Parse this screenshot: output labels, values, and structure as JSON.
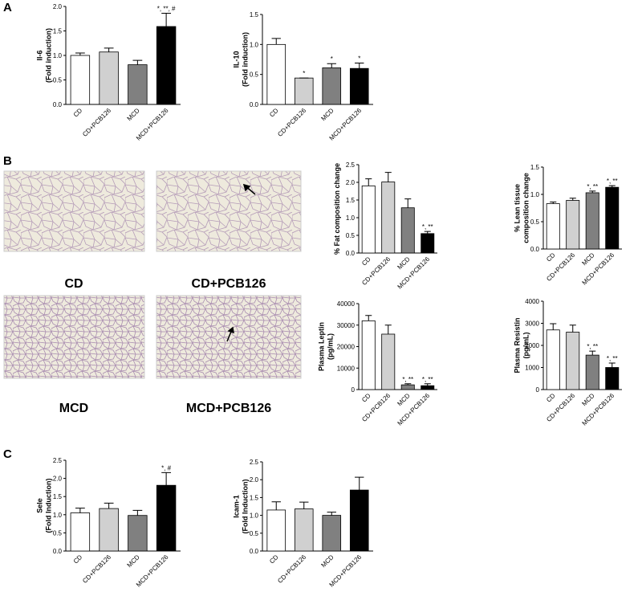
{
  "panels": [
    "A",
    "B",
    "C"
  ],
  "images": [
    {
      "label": "CD"
    },
    {
      "label": "CD+PCB126"
    },
    {
      "label": "MCD"
    },
    {
      "label": "MCD+PCB126"
    }
  ],
  "chart_data": [
    {
      "type": "bar",
      "ylabel": [
        "Il-6",
        "(Fold induction)"
      ],
      "categories": [
        "CD",
        "CD+PCB126",
        "MCD",
        "MCD+PCB126"
      ],
      "values": [
        1.0,
        1.07,
        0.81,
        1.59
      ],
      "errors": [
        0.05,
        0.08,
        0.09,
        0.27
      ],
      "annotations": [
        null,
        null,
        null,
        "*, **, #"
      ],
      "colors": [
        "#ffffff",
        "#d0d0d0",
        "#808080",
        "#000000"
      ],
      "ylim": [
        0,
        2
      ],
      "yticks": [
        {
          "value": 0,
          "label": "0.0"
        },
        0.5,
        {
          "value": 1,
          "label": "1.0"
        },
        1.5,
        {
          "value": 2,
          "label": "2.0"
        }
      ]
    },
    {
      "type": "bar",
      "ylabel": [
        "IL-10",
        "(Fold induction)"
      ],
      "categories": [
        "CD",
        "CD+PCB126",
        "MCD",
        "MCD+PCB126"
      ],
      "values": [
        1.0,
        0.44,
        0.61,
        0.6
      ],
      "errors": [
        0.1,
        0,
        0.07,
        0.09
      ],
      "annotations": [
        null,
        "*",
        "*",
        "*"
      ],
      "colors": [
        "#ffffff",
        "#d0d0d0",
        "#808080",
        "#000000"
      ],
      "ylim": [
        0,
        1.5
      ],
      "yticks": [
        {
          "value": 0,
          "label": "0.0"
        },
        0.5,
        {
          "value": 1,
          "label": "1.0"
        },
        1.5
      ]
    },
    {
      "type": "bar",
      "ylabel": [
        "% Fat composition change"
      ],
      "categories": [
        "CD",
        "CD+PCB126",
        "MCD",
        "MCD+PCB126"
      ],
      "values": [
        1.9,
        2.01,
        1.28,
        0.55
      ],
      "errors": [
        0.2,
        0.27,
        0.25,
        0.06
      ],
      "annotations": [
        null,
        null,
        null,
        "*, **"
      ],
      "colors": [
        "#ffffff",
        "#d0d0d0",
        "#808080",
        "#000000"
      ],
      "ylim": [
        0,
        2.5
      ],
      "yticks": [
        {
          "value": 0,
          "label": "0.0"
        },
        0.5,
        {
          "value": 1,
          "label": "1.0"
        },
        1.5,
        {
          "value": 2,
          "label": "2.0"
        },
        2.5
      ]
    },
    {
      "type": "bar",
      "ylabel": [
        "% Lean tissue",
        "composition change"
      ],
      "categories": [
        "CD",
        "CD+PCB126",
        "MCD",
        "MCD+PCB126"
      ],
      "values": [
        0.83,
        0.89,
        1.03,
        1.13
      ],
      "errors": [
        0.03,
        0.04,
        0.03,
        0.03
      ],
      "annotations": [
        null,
        null,
        "*, **",
        "*, **"
      ],
      "colors": [
        "#ffffff",
        "#d0d0d0",
        "#808080",
        "#000000"
      ],
      "ylim": [
        0,
        1.5
      ],
      "yticks": [
        {
          "value": 0,
          "label": "0.0"
        },
        0.5,
        {
          "value": 1,
          "label": "1.0"
        },
        1.5
      ]
    },
    {
      "type": "bar",
      "ylabel": [
        "Plasma Leptin",
        "(pg/mL)"
      ],
      "categories": [
        "CD",
        "CD+PCB126",
        "MCD",
        "MCD+PCB126"
      ],
      "values": [
        32000,
        25800,
        2200,
        1800
      ],
      "errors": [
        2500,
        4200,
        500,
        900
      ],
      "annotations": [
        null,
        null,
        "*, **",
        "*, **"
      ],
      "colors": [
        "#ffffff",
        "#d0d0d0",
        "#808080",
        "#000000"
      ],
      "ylim": [
        0,
        40000
      ],
      "yticks": [
        0,
        10000,
        20000,
        30000,
        40000
      ]
    },
    {
      "type": "bar",
      "ylabel": [
        "Plasma Resistin",
        "(pg/mL)"
      ],
      "categories": [
        "CD",
        "CD+PCB126",
        "MCD",
        "MCD+PCB126"
      ],
      "values": [
        2700,
        2600,
        1560,
        1000
      ],
      "errors": [
        280,
        320,
        180,
        200
      ],
      "annotations": [
        null,
        null,
        "*, **",
        "*, **"
      ],
      "colors": [
        "#ffffff",
        "#d0d0d0",
        "#808080",
        "#000000"
      ],
      "ylim": [
        0,
        4000
      ],
      "yticks": [
        0,
        1000,
        2000,
        3000,
        4000
      ]
    },
    {
      "type": "bar",
      "ylabel": [
        "Sele",
        "(Fold Induction)"
      ],
      "categories": [
        "CD",
        "CD+PCB126",
        "MCD",
        "MCD+PCB126"
      ],
      "values": [
        1.05,
        1.17,
        0.98,
        1.81
      ],
      "errors": [
        0.13,
        0.15,
        0.14,
        0.35
      ],
      "annotations": [
        null,
        null,
        null,
        "*, #"
      ],
      "colors": [
        "#ffffff",
        "#d0d0d0",
        "#808080",
        "#000000"
      ],
      "ylim": [
        0,
        2.5
      ],
      "yticks": [
        {
          "value": 0,
          "label": "0.0"
        },
        0.5,
        {
          "value": 1,
          "label": "1.0"
        },
        1.5,
        {
          "value": 2,
          "label": "2.0"
        },
        2.5
      ]
    },
    {
      "type": "bar",
      "ylabel": [
        "Icam-1",
        "(Fold Induction)"
      ],
      "categories": [
        "CD",
        "CD+PCB126",
        "MCD",
        "MCD+PCB126"
      ],
      "values": [
        1.15,
        1.18,
        1.0,
        1.71
      ],
      "errors": [
        0.23,
        0.19,
        0.09,
        0.36
      ],
      "annotations": [
        null,
        null,
        null,
        null
      ],
      "colors": [
        "#ffffff",
        "#d0d0d0",
        "#808080",
        "#000000"
      ],
      "ylim": [
        0,
        2.5
      ],
      "yticks": [
        {
          "value": 0,
          "label": "0.0"
        },
        0.5,
        {
          "value": 1,
          "label": "1.0"
        },
        1.5,
        {
          "value": 2,
          "label": "2.0"
        },
        2.5
      ]
    }
  ]
}
